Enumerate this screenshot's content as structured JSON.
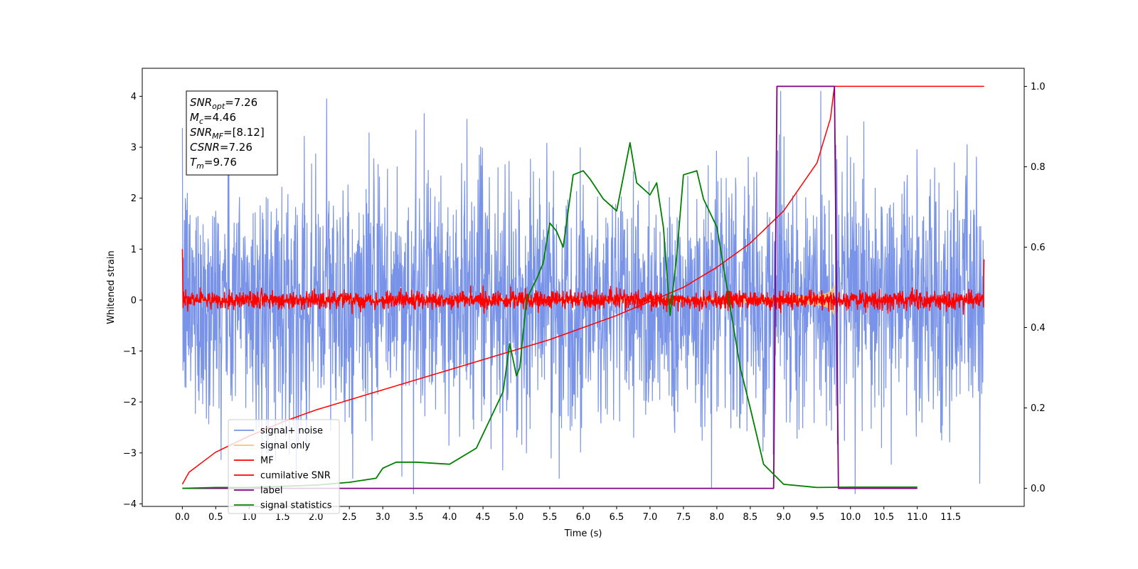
{
  "chart_data": {
    "type": "line",
    "xlabel": "Time (s)",
    "ylabel": "Whitened strain",
    "xlim": [
      -0.6,
      12.6
    ],
    "ylim": [
      -4.05,
      4.55
    ],
    "y2lim": [
      -0.045,
      1.045
    ],
    "x_ticks": [
      0.0,
      0.5,
      1.0,
      1.5,
      2.0,
      2.5,
      3.0,
      3.5,
      4.0,
      4.5,
      5.0,
      5.5,
      6.0,
      6.5,
      7.0,
      7.5,
      8.0,
      8.5,
      9.0,
      9.5,
      10.0,
      10.5,
      11.0,
      11.5
    ],
    "x_tick_labels": [
      "0.0",
      "0.5",
      "1.0",
      "1.5",
      "2.0",
      "2.5",
      "3.0",
      "3.5",
      "4.0",
      "4.5",
      "5.0",
      "5.5",
      "6.0",
      "6.5",
      "7.0",
      "7.5",
      "8.0",
      "8.5",
      "9.0",
      "9.5",
      "10.0",
      "10.5",
      "11.0",
      "11.5"
    ],
    "y_ticks": [
      -4,
      -3,
      -2,
      -1,
      0,
      1,
      2,
      3,
      4
    ],
    "y_tick_labels": [
      "−4",
      "−3",
      "−2",
      "−1",
      "0",
      "1",
      "2",
      "3",
      "4"
    ],
    "y2_ticks": [
      0.0,
      0.2,
      0.4,
      0.6,
      0.8,
      1.0
    ],
    "y2_tick_labels": [
      "0.0",
      "0.2",
      "0.4",
      "0.6",
      "0.8",
      "1.0"
    ],
    "annotation": {
      "lines": [
        {
          "base": "SNR",
          "sub": "opt",
          "value": "=7.26"
        },
        {
          "base": "M",
          "sub": "c",
          "value": "=4.46"
        },
        {
          "base": "SNR",
          "sub": "MF",
          "value": "=[8.12]"
        },
        {
          "base": "CSNR",
          "sub": "",
          "value": "=7.26"
        },
        {
          "base": "T",
          "sub": "m",
          "value": "=9.76"
        }
      ]
    },
    "legend_placement": "lower-left",
    "series": [
      {
        "name": "signal+ noise",
        "color": "#7893e8",
        "axis": "left",
        "kind": "noise",
        "x_range": [
          0.0,
          12.0
        ],
        "band": [
          -1.4,
          1.4
        ],
        "typical_extremes": [
          -2.6,
          2.6
        ],
        "peak_max": 3.95,
        "peak_min": -3.7
      },
      {
        "name": "signal only",
        "color": "#f5c578",
        "axis": "left",
        "kind": "chirp",
        "x_range": [
          0.0,
          9.76
        ],
        "envelope_max": 0.55
      },
      {
        "name": "MF",
        "color": "#ff0000",
        "axis": "left",
        "kind": "noise",
        "x_range": [
          0.0,
          12.0
        ],
        "band": [
          -0.2,
          0.2
        ],
        "spike_start": 1.0,
        "spike_end": 0.8
      },
      {
        "name": "cumilative SNR",
        "color": "#ff0000",
        "axis": "right",
        "x": [
          0.0,
          0.1,
          0.5,
          1.0,
          1.5,
          2.0,
          2.5,
          3.0,
          3.5,
          4.0,
          4.5,
          5.0,
          5.5,
          6.0,
          6.5,
          7.0,
          7.5,
          8.0,
          8.5,
          9.0,
          9.5,
          9.7,
          9.76,
          12.0
        ],
        "y": [
          0.01,
          0.04,
          0.09,
          0.13,
          0.165,
          0.195,
          0.22,
          0.245,
          0.27,
          0.295,
          0.32,
          0.345,
          0.37,
          0.4,
          0.43,
          0.465,
          0.5,
          0.55,
          0.61,
          0.69,
          0.81,
          0.92,
          1.0,
          1.0
        ]
      },
      {
        "name": "label",
        "color": "#800080",
        "axis": "right",
        "x": [
          0.0,
          8.85,
          8.9,
          9.76,
          9.82,
          11.0
        ],
        "y": [
          0.0,
          0.0,
          1.0,
          1.0,
          0.0,
          0.0
        ]
      },
      {
        "name": "signal statistics",
        "color": "#008000",
        "axis": "right",
        "x": [
          0.0,
          0.5,
          1.0,
          2.0,
          2.5,
          2.9,
          3.0,
          3.2,
          3.5,
          4.0,
          4.4,
          4.6,
          4.8,
          4.9,
          5.0,
          5.05,
          5.15,
          5.3,
          5.4,
          5.5,
          5.6,
          5.7,
          5.85,
          6.0,
          6.1,
          6.3,
          6.5,
          6.7,
          6.8,
          7.0,
          7.1,
          7.2,
          7.3,
          7.4,
          7.5,
          7.7,
          7.8,
          8.0,
          8.1,
          8.2,
          8.35,
          8.5,
          8.7,
          9.0,
          9.5,
          10.0,
          11.0
        ],
        "y": [
          0.0,
          0.002,
          0.002,
          0.008,
          0.015,
          0.025,
          0.05,
          0.065,
          0.065,
          0.06,
          0.1,
          0.17,
          0.24,
          0.36,
          0.28,
          0.3,
          0.47,
          0.52,
          0.56,
          0.66,
          0.64,
          0.6,
          0.78,
          0.79,
          0.77,
          0.72,
          0.69,
          0.86,
          0.76,
          0.73,
          0.76,
          0.65,
          0.43,
          0.58,
          0.78,
          0.79,
          0.72,
          0.65,
          0.55,
          0.45,
          0.3,
          0.2,
          0.06,
          0.01,
          0.002,
          0.003,
          0.003
        ]
      }
    ]
  }
}
